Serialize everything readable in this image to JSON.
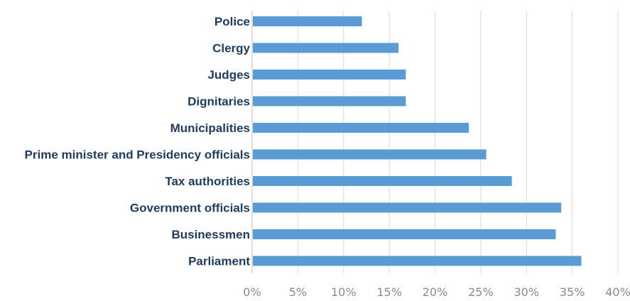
{
  "chart_data": {
    "type": "bar",
    "orientation": "horizontal",
    "categories": [
      "Police",
      "Clergy",
      "Judges",
      "Dignitaries",
      "Municipalities",
      "Prime minister and Presidency officials",
      "Tax authorities",
      "Government officials",
      "Businessmen",
      "Parliament"
    ],
    "values": [
      12,
      16,
      16.8,
      16.8,
      23.7,
      25.6,
      28.4,
      33.8,
      33.2,
      36
    ],
    "value_unit": "%",
    "xlim": [
      0,
      40
    ],
    "xticks": [
      "0%",
      "5%",
      "10%",
      "15%",
      "20%",
      "25%",
      "30%",
      "35%",
      "40%"
    ],
    "grid": "vertical",
    "bar_color": "#5b9bd5",
    "label_color": "#1f3a5f"
  }
}
